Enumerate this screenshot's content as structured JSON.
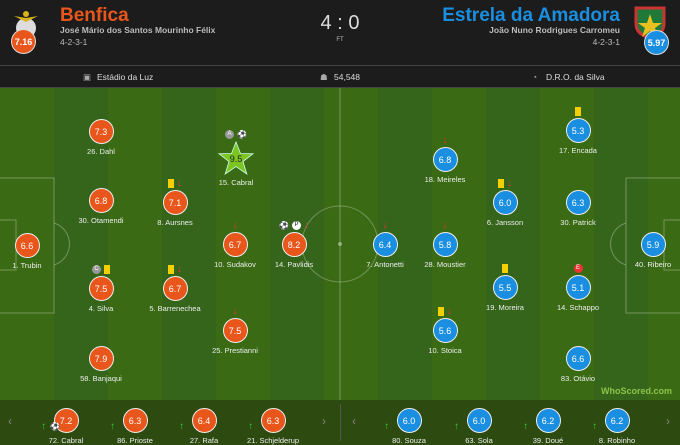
{
  "home": {
    "name": "Benfica",
    "manager": "José Mário dos Santos Mourinho Félix",
    "formation": "4-2-3-1",
    "rating": "7.16",
    "color": "#e8561b"
  },
  "away": {
    "name": "Estrela da Amadora",
    "manager": "João Nuno Rodrigues Carromeu",
    "formation": "4-2-3-1",
    "rating": "5.97",
    "color": "#1a8ee0"
  },
  "score": "4 : 0",
  "status": "FT",
  "info": {
    "stadium": "Estádio da Luz",
    "attendance": "54,548",
    "referee": "D.R.O. da Silva"
  },
  "home_players": [
    {
      "name": "26. Dahl",
      "rating": "7.3",
      "events": []
    },
    {
      "name": "30. Otamendi",
      "rating": "6.8",
      "events": []
    },
    {
      "name": "1. Trubin",
      "rating": "6.6",
      "events": []
    },
    {
      "name": "4. Silva",
      "rating": "7.5",
      "events": [
        "captain",
        "yellow-card"
      ]
    },
    {
      "name": "58. Banjaqui",
      "rating": "7.9",
      "events": []
    },
    {
      "name": "8. Aursnes",
      "rating": "7.1",
      "events": [
        "yellow-card",
        "sub-off"
      ]
    },
    {
      "name": "5. Barrenechea",
      "rating": "6.7",
      "events": [
        "yellow-card",
        "sub-off"
      ]
    },
    {
      "name": "15. Cabral",
      "rating": "9.5",
      "events": [
        "assist",
        "goal"
      ],
      "motm": true
    },
    {
      "name": "10. Sudakov",
      "rating": "6.7",
      "events": [
        "sub-off"
      ]
    },
    {
      "name": "25. Prestianni",
      "rating": "7.5",
      "events": [
        "sub-off"
      ]
    },
    {
      "name": "14. Pavlidis",
      "rating": "8.2",
      "events": [
        "goal",
        "penalty-goal",
        "sub-off"
      ]
    }
  ],
  "away_players": [
    {
      "name": "7. Antonetti",
      "rating": "6.4",
      "events": [
        "sub-off"
      ]
    },
    {
      "name": "18. Meireles",
      "rating": "6.8",
      "events": [
        "sub-off"
      ]
    },
    {
      "name": "28. Moustier",
      "rating": "5.8",
      "events": [
        "sub-off"
      ]
    },
    {
      "name": "10. Stoica",
      "rating": "5.6",
      "events": [
        "yellow-card",
        "sub-off"
      ]
    },
    {
      "name": "6. Jansson",
      "rating": "6.0",
      "events": [
        "yellow-card",
        "sub-off"
      ]
    },
    {
      "name": "19. Moreira",
      "rating": "5.5",
      "events": [
        "yellow-card"
      ]
    },
    {
      "name": "17. Encada",
      "rating": "5.3",
      "events": [
        "yellow-card"
      ]
    },
    {
      "name": "30. Patrick",
      "rating": "6.3",
      "events": []
    },
    {
      "name": "14. Schappo",
      "rating": "5.1",
      "events": [
        "error"
      ]
    },
    {
      "name": "83. Otávio",
      "rating": "6.6",
      "events": []
    },
    {
      "name": "40. Ribeiro",
      "rating": "5.9",
      "events": []
    }
  ],
  "home_bench": [
    {
      "name": "72. Cabral",
      "rating": "7.2",
      "goal": true
    },
    {
      "name": "86. Prioste",
      "rating": "6.3"
    },
    {
      "name": "27. Rafa",
      "rating": "6.4"
    },
    {
      "name": "21. Schjelderup",
      "rating": "6.3"
    }
  ],
  "away_bench": [
    {
      "name": "80. Souza",
      "rating": "6.0"
    },
    {
      "name": "63. Sola",
      "rating": "6.0"
    },
    {
      "name": "39. Doué",
      "rating": "6.2"
    },
    {
      "name": "8. Robinho",
      "rating": "6.2"
    }
  ],
  "watermark": "WhoScored.com"
}
